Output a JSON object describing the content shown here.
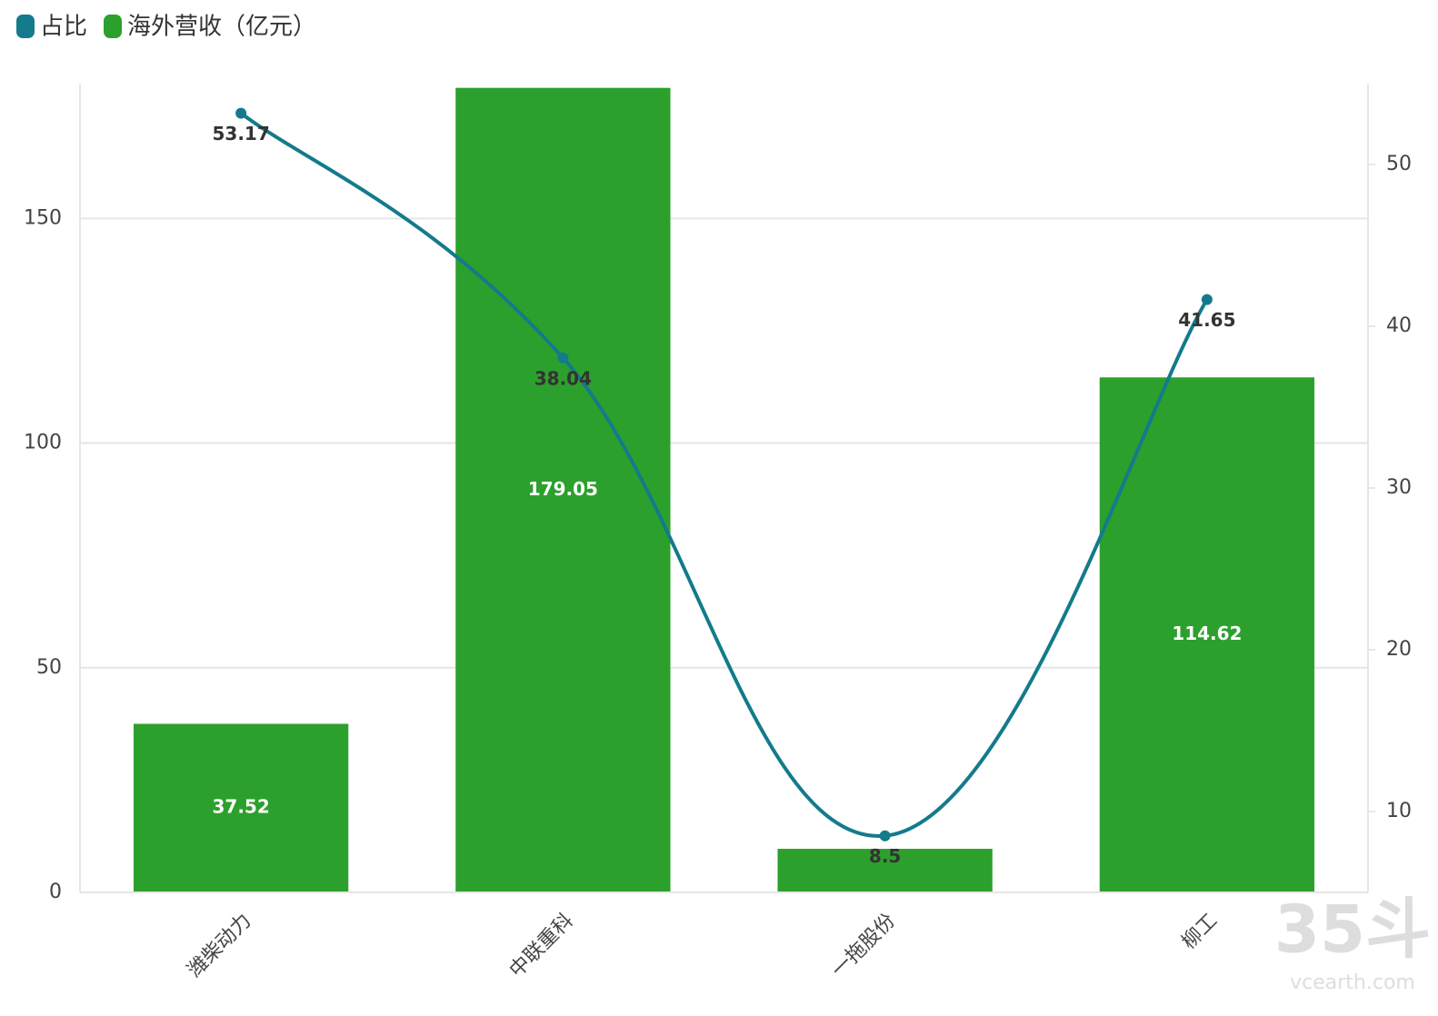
{
  "chart_data": {
    "type": "bar-line",
    "categories": [
      "潍柴动力",
      "中联重科",
      "一拖股份",
      "柳工"
    ],
    "series": [
      {
        "name": "占比",
        "type": "line",
        "axis": "y2",
        "color": "#137b8b",
        "values": [
          53.17,
          38.04,
          8.5,
          41.65
        ]
      },
      {
        "name": "海外营收（亿元）",
        "type": "bar",
        "color": "#2ca02c",
        "values": [
          37.52,
          179.05,
          9.7,
          114.62
        ],
        "value_labels": [
          "37.52",
          "179.05",
          null,
          "114.62"
        ]
      }
    ],
    "ylim": [
      0,
      180
    ],
    "yticks": [
      0,
      50,
      100,
      150
    ],
    "y2lim": [
      5,
      55
    ],
    "y2ticks": [
      10,
      20,
      30,
      40,
      50
    ],
    "grid": true,
    "legend": "top-left",
    "watermark": {
      "main": "35斗",
      "sub": "vcearth.com"
    }
  }
}
